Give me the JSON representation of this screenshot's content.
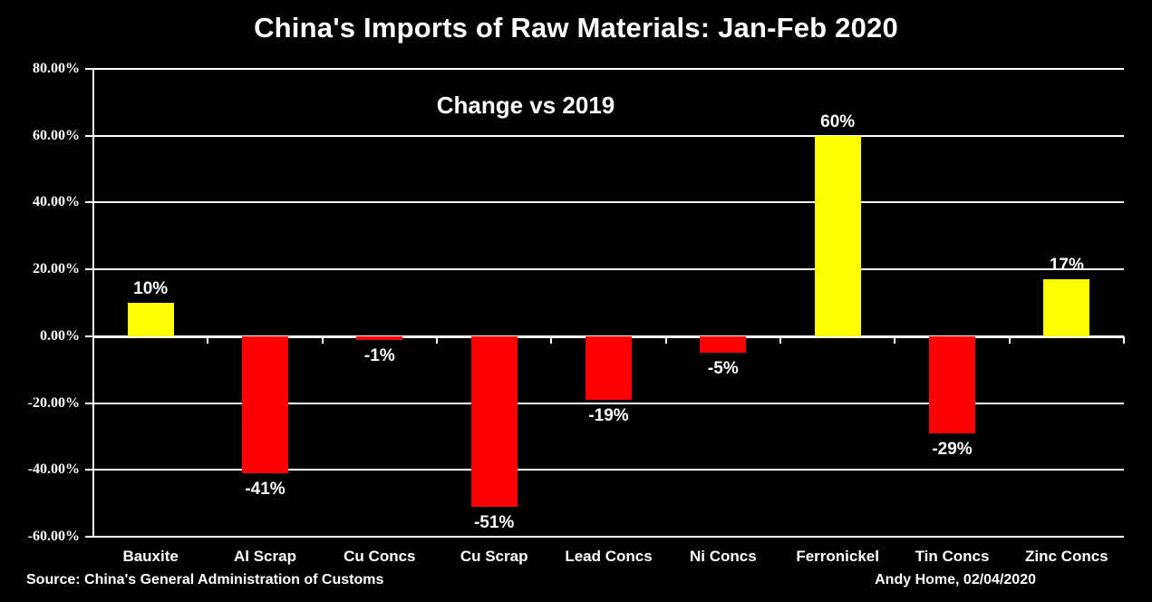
{
  "title": "China's Imports of Raw Materials: Jan-Feb 2020",
  "subtitle": "Change vs 2019",
  "footer": {
    "source": "Source: China's General Administration of Customs",
    "credit": "Andy Home, 02/04/2020"
  },
  "colors": {
    "background": "#000000",
    "positive_bar": "#FFFF00",
    "negative_bar": "#FF0000",
    "text": "#FFFFFF",
    "gridline": "#FFFFFF"
  },
  "chart_data": {
    "type": "bar",
    "title": "China's Imports of Raw Materials: Jan-Feb 2020",
    "subtitle": "Change vs 2019",
    "categories": [
      "Bauxite",
      "Al Scrap",
      "Cu Concs",
      "Cu Scrap",
      "Lead Concs",
      "Ni Concs",
      "Ferronickel",
      "Tin Concs",
      "Zinc Concs"
    ],
    "values": [
      10,
      -41,
      -1,
      -51,
      -19,
      -5,
      60,
      -29,
      17
    ],
    "value_labels": [
      "10%",
      "-41%",
      "-1%",
      "-51%",
      "-19%",
      "-5%",
      "60%",
      "-29%",
      "17%"
    ],
    "xlabel": "",
    "ylabel": "",
    "ylim": [
      -60,
      80
    ],
    "ytick_values": [
      80,
      60,
      40,
      20,
      0,
      -20,
      -40,
      -60
    ],
    "ytick_labels": [
      "80.00%",
      "60.00%",
      "40.00%",
      "20.00%",
      "0.00%",
      "-20.00%",
      "-40.00%",
      "-60.00%"
    ],
    "grid": true,
    "legend_position": "none"
  }
}
